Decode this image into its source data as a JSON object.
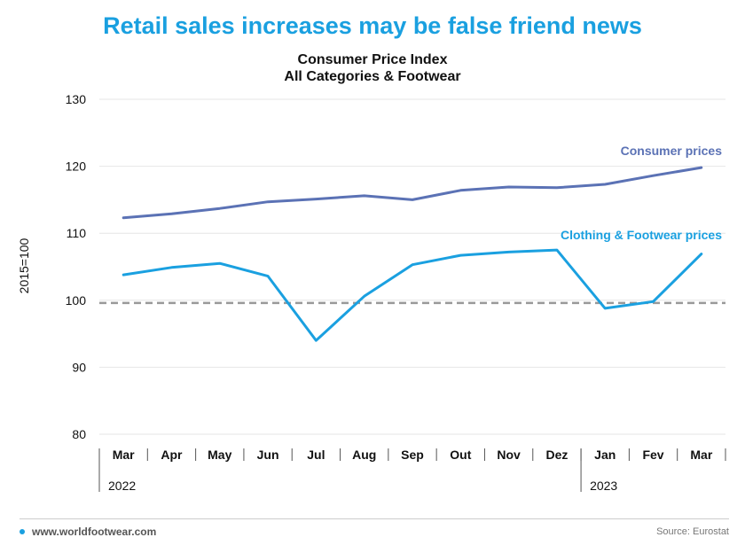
{
  "headline": "Retail sales increases may be false friend news",
  "chart_data": {
    "type": "line",
    "title": "Consumer Price Index",
    "subtitle": "All Categories & Footwear",
    "ylabel": "2015=100",
    "ylim": [
      80,
      130
    ],
    "yticks": [
      80,
      90,
      100,
      110,
      120,
      130
    ],
    "categories": [
      "Mar",
      "Apr",
      "May",
      "Jun",
      "Jul",
      "Aug",
      "Sep",
      "Out",
      "Nov",
      "Dez",
      "Jan",
      "Fev",
      "Mar"
    ],
    "years": [
      {
        "label": "2022",
        "start_index": 0
      },
      {
        "label": "2023",
        "start_index": 10
      }
    ],
    "reference_line": 99.6,
    "series": [
      {
        "name": "Consumer prices",
        "color": "#5b72b5",
        "values": [
          112.3,
          112.9,
          113.7,
          114.7,
          115.1,
          115.6,
          115.0,
          116.4,
          116.9,
          116.8,
          117.3,
          118.6,
          119.8
        ]
      },
      {
        "name": "Clothing & Footwear prices",
        "color": "#1aa0e0",
        "values": [
          103.8,
          104.9,
          105.5,
          103.6,
          94.0,
          100.6,
          105.3,
          106.7,
          107.2,
          107.5,
          98.8,
          99.8,
          106.9
        ]
      }
    ],
    "grid": true
  },
  "footer": {
    "website": "www.worldfootwear.com",
    "source": "Source: Eurostat"
  }
}
